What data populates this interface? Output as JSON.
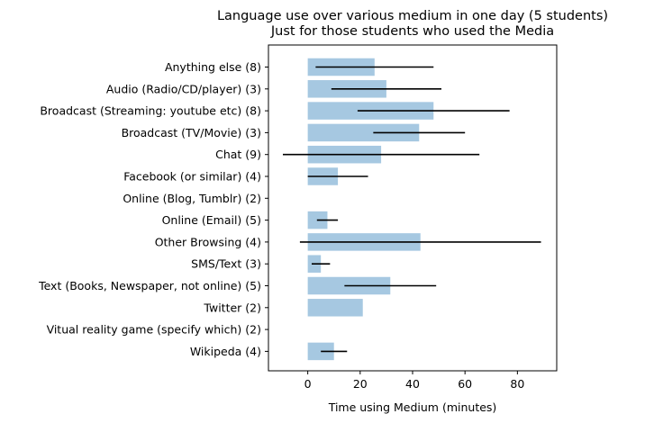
{
  "chart_data": {
    "type": "bar",
    "orientation": "horizontal",
    "title": "Language use over various medium in one day (5 students)",
    "subtitle": "Just for those students who used the Media",
    "xlabel": "Time using Medium (minutes)",
    "ylabel": "",
    "xlim": [
      -15,
      95
    ],
    "xticks": [
      "0",
      "20",
      "40",
      "60",
      "80"
    ],
    "grid": false,
    "bar_color": "#a6c8e1",
    "error_color": "#000000",
    "categories": [
      "Anything else (8)",
      "Audio (Radio/CD/player) (3)",
      "Broadcast (Streaming: youtube etc) (8)",
      "Broadcast (TV/Movie) (3)",
      "Chat (9)",
      "Facebook (or similar) (4)",
      "Online (Blog, Tumblr) (2)",
      "Online (Email) (5)",
      "Other Browsing (4)",
      "SMS/Text (3)",
      "Text (Books, Newspaper, not online) (5)",
      "Twitter (2)",
      "Vitual reality game (specify which) (2)",
      "Wikipeda (4)"
    ],
    "values": [
      25.5,
      30,
      48,
      42.5,
      28,
      11.5,
      0,
      7.5,
      43,
      5,
      31.5,
      21,
      0,
      10
    ],
    "errors": [
      22.5,
      21,
      29,
      17.5,
      37.5,
      11.5,
      null,
      4,
      46,
      3.5,
      17.5,
      null,
      null,
      5
    ]
  }
}
